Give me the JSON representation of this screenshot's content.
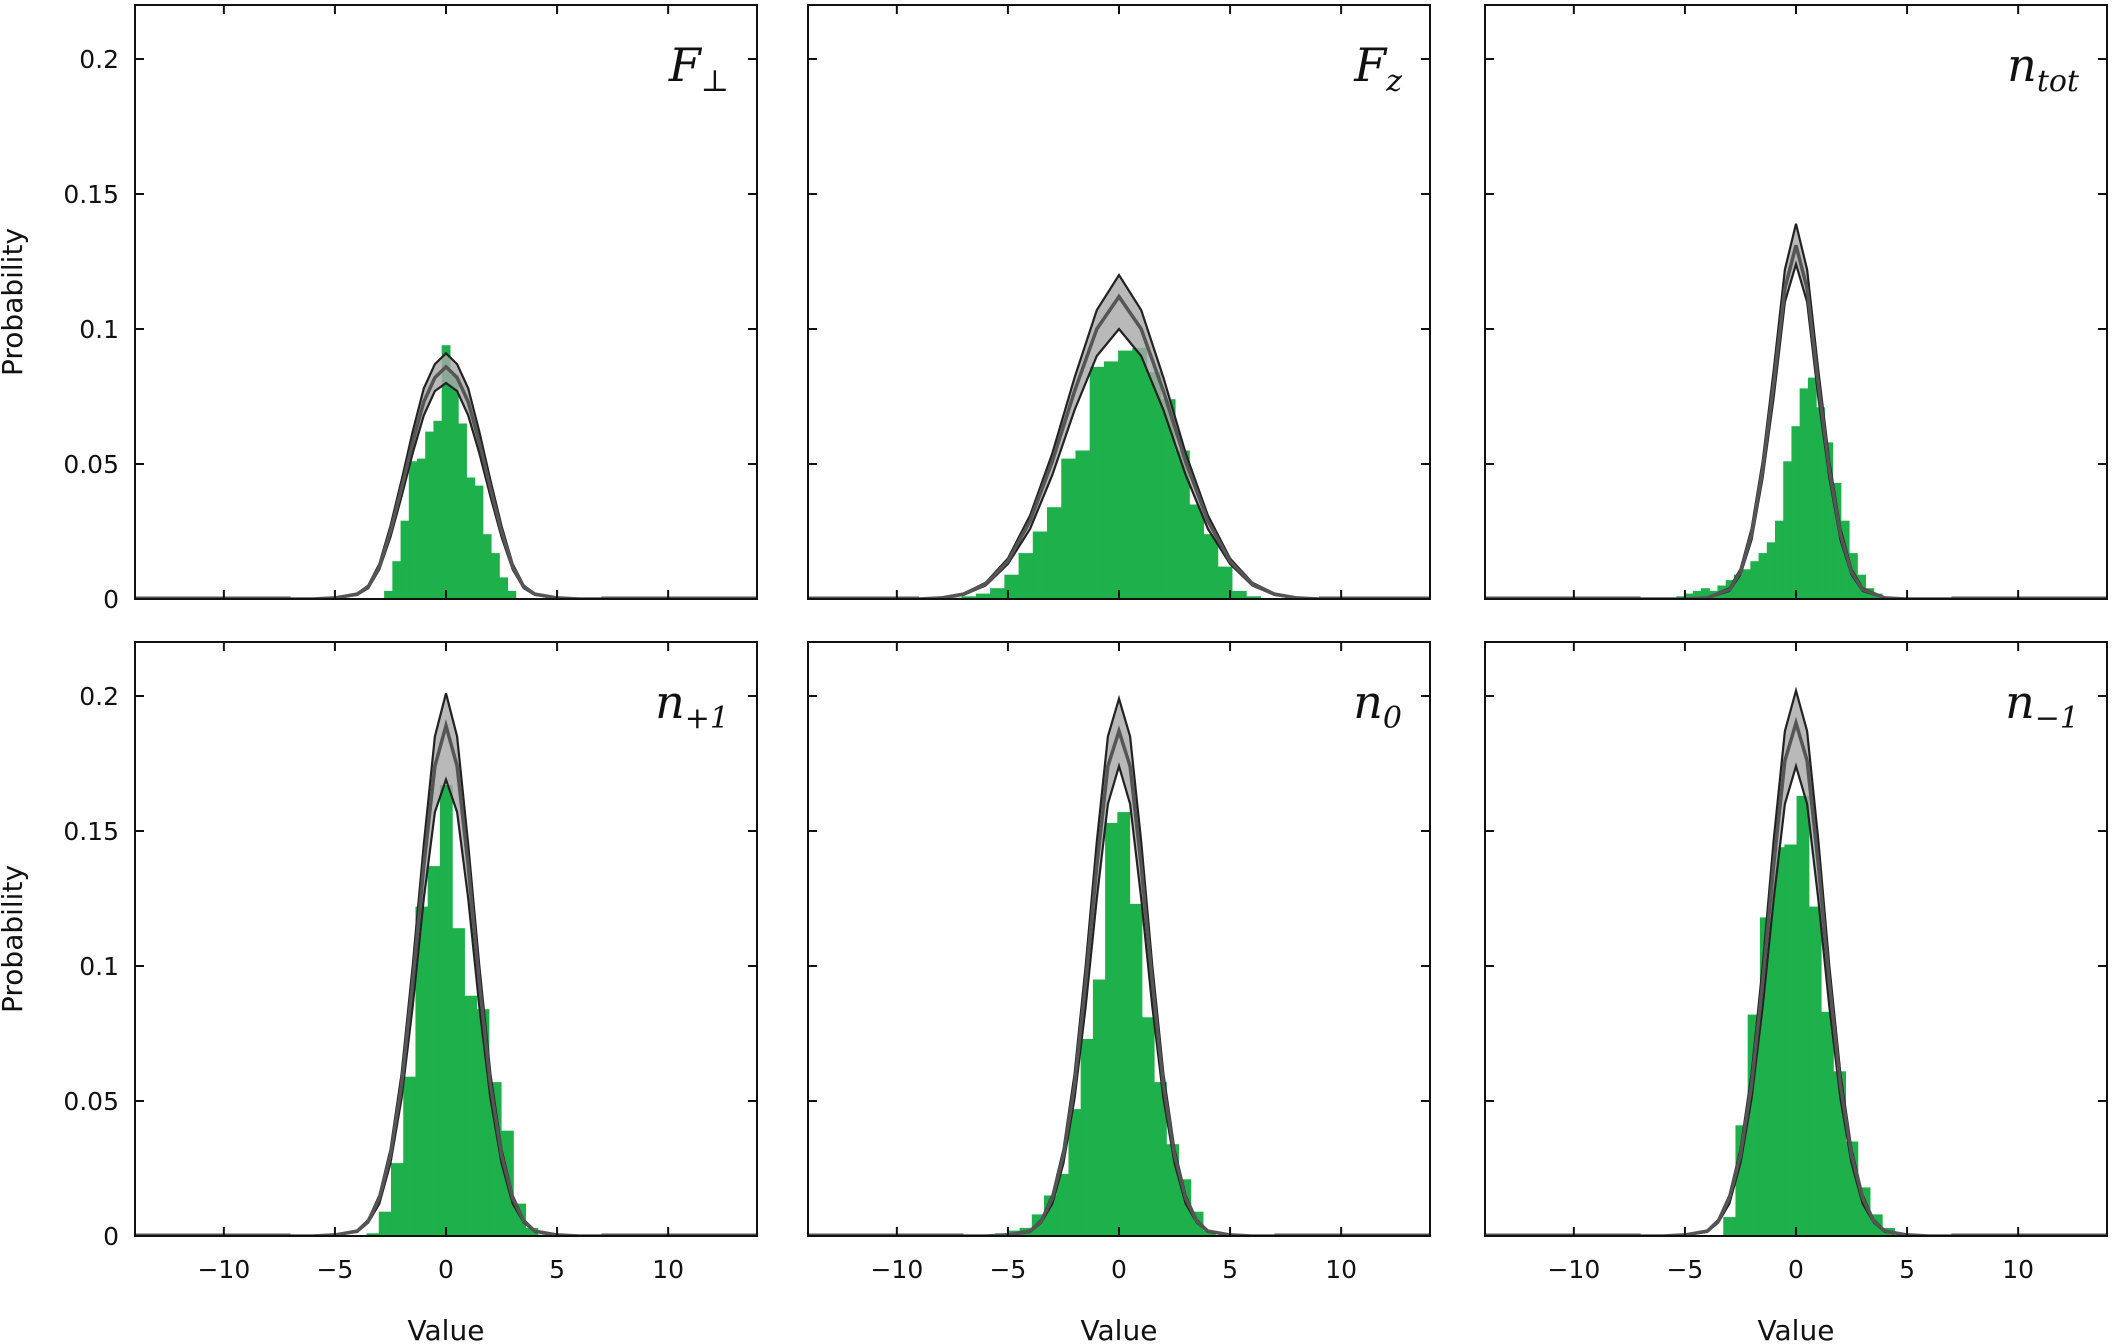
{
  "chart_data": [
    {
      "type": "bar",
      "panel_label": "F",
      "panel_label_sub": "⊥",
      "ylabel": "Probability",
      "xlabel": "",
      "xlim": [
        -14,
        14
      ],
      "ylim": [
        0,
        0.22
      ],
      "show_xticklabels": false,
      "show_yticklabels": true,
      "bin_width": 0.37,
      "hist_x": [
        -2.6,
        -2.23,
        -1.86,
        -1.49,
        -1.12,
        -0.75,
        -0.38,
        -0.01,
        0.36,
        0.73,
        1.1,
        1.47,
        1.84,
        2.21,
        2.58,
        2.95
      ],
      "hist_y": [
        0.003,
        0.014,
        0.029,
        0.051,
        0.052,
        0.062,
        0.066,
        0.094,
        0.083,
        0.065,
        0.045,
        0.042,
        0.024,
        0.017,
        0.008,
        0.003
      ],
      "band": {
        "x": [
          -7,
          -6,
          -5,
          -4,
          -3.5,
          -3,
          -2.5,
          -2,
          -1.5,
          -1,
          -0.5,
          0,
          0.5,
          1,
          1.5,
          2,
          2.5,
          3,
          3.5,
          4,
          5,
          6,
          7
        ],
        "upper": [
          0,
          0,
          0.0005,
          0.002,
          0.005,
          0.013,
          0.027,
          0.044,
          0.062,
          0.078,
          0.087,
          0.091,
          0.087,
          0.078,
          0.062,
          0.044,
          0.027,
          0.013,
          0.005,
          0.002,
          0.0005,
          0,
          0
        ],
        "mean": [
          0,
          0,
          0.0004,
          0.0018,
          0.0045,
          0.012,
          0.025,
          0.041,
          0.058,
          0.073,
          0.082,
          0.086,
          0.082,
          0.073,
          0.058,
          0.041,
          0.025,
          0.012,
          0.0045,
          0.0018,
          0.0004,
          0,
          0
        ],
        "lower": [
          0,
          0,
          0.0003,
          0.0015,
          0.004,
          0.011,
          0.023,
          0.038,
          0.054,
          0.068,
          0.077,
          0.08,
          0.077,
          0.068,
          0.054,
          0.038,
          0.023,
          0.011,
          0.004,
          0.0015,
          0.0003,
          0,
          0
        ]
      }
    },
    {
      "type": "bar",
      "panel_label": "F",
      "panel_label_sub": "z",
      "ylabel": "",
      "xlabel": "",
      "xlim": [
        -14,
        14
      ],
      "ylim": [
        0,
        0.22
      ],
      "show_xticklabels": false,
      "show_yticklabels": false,
      "bin_width": 0.64,
      "hist_x": [
        -7.4,
        -6.76,
        -6.12,
        -5.48,
        -4.84,
        -4.2,
        -3.56,
        -2.92,
        -2.28,
        -1.64,
        -1.0,
        -0.36,
        0.28,
        0.92,
        1.56,
        2.2,
        2.84,
        3.48,
        4.12,
        4.76,
        5.4,
        6.04
      ],
      "hist_y": [
        0.0005,
        0.001,
        0.002,
        0.004,
        0.009,
        0.017,
        0.025,
        0.034,
        0.052,
        0.055,
        0.086,
        0.088,
        0.092,
        0.093,
        0.084,
        0.074,
        0.055,
        0.035,
        0.024,
        0.012,
        0.003,
        0.001
      ],
      "band": {
        "x": [
          -9,
          -8,
          -7,
          -6,
          -5,
          -4,
          -3,
          -2,
          -1,
          0,
          1,
          2,
          3,
          4,
          5,
          6,
          7,
          8,
          9
        ],
        "upper": [
          0,
          0.0005,
          0.002,
          0.006,
          0.015,
          0.031,
          0.054,
          0.082,
          0.107,
          0.12,
          0.107,
          0.082,
          0.054,
          0.031,
          0.015,
          0.006,
          0.002,
          0.0005,
          0
        ],
        "mean": [
          0,
          0.0004,
          0.0018,
          0.0055,
          0.014,
          0.029,
          0.051,
          0.077,
          0.1,
          0.112,
          0.1,
          0.077,
          0.051,
          0.029,
          0.014,
          0.0055,
          0.0018,
          0.0004,
          0
        ],
        "lower": [
          0,
          0.0003,
          0.0015,
          0.005,
          0.013,
          0.026,
          0.046,
          0.07,
          0.09,
          0.1,
          0.09,
          0.07,
          0.046,
          0.026,
          0.013,
          0.005,
          0.0015,
          0.0003,
          0
        ]
      }
    },
    {
      "type": "bar",
      "panel_label": "n",
      "panel_label_sub": "tot",
      "ylabel": "",
      "xlabel": "",
      "xlim": [
        -14,
        14
      ],
      "ylim": [
        0,
        0.22
      ],
      "show_xticklabels": false,
      "show_yticklabels": false,
      "bin_width": 0.37,
      "hist_x": [
        -5.2,
        -4.83,
        -4.46,
        -4.09,
        -3.72,
        -3.35,
        -2.98,
        -2.61,
        -2.24,
        -1.87,
        -1.5,
        -1.13,
        -0.76,
        -0.39,
        -0.02,
        0.35,
        0.72,
        1.09,
        1.46,
        1.83,
        2.2,
        2.57,
        2.94,
        3.31,
        3.68
      ],
      "hist_y": [
        0.001,
        0.002,
        0.003,
        0.004,
        0.003,
        0.005,
        0.007,
        0.009,
        0.011,
        0.014,
        0.017,
        0.021,
        0.029,
        0.051,
        0.064,
        0.078,
        0.082,
        0.071,
        0.058,
        0.043,
        0.029,
        0.017,
        0.009,
        0.004,
        0.002
      ],
      "band": {
        "x": [
          -7,
          -6,
          -5,
          -4,
          -3,
          -2.5,
          -2,
          -1.5,
          -1,
          -0.5,
          0,
          0.5,
          1,
          1.5,
          2,
          2.5,
          3,
          4,
          5,
          6,
          7
        ],
        "upper": [
          0,
          0,
          0,
          0.0005,
          0.004,
          0.011,
          0.026,
          0.051,
          0.085,
          0.122,
          0.139,
          0.122,
          0.085,
          0.051,
          0.026,
          0.011,
          0.004,
          0.0005,
          0,
          0,
          0
        ],
        "mean": [
          0,
          0,
          0,
          0.0004,
          0.0035,
          0.01,
          0.024,
          0.048,
          0.08,
          0.115,
          0.131,
          0.115,
          0.08,
          0.048,
          0.024,
          0.01,
          0.0035,
          0.0004,
          0,
          0,
          0
        ],
        "lower": [
          0,
          0,
          0,
          0.0003,
          0.003,
          0.009,
          0.022,
          0.045,
          0.075,
          0.11,
          0.124,
          0.11,
          0.075,
          0.045,
          0.022,
          0.009,
          0.003,
          0.0003,
          0,
          0,
          0
        ]
      }
    },
    {
      "type": "bar",
      "panel_label": "n",
      "panel_label_sub": "+1",
      "ylabel": "Probability",
      "xlabel": "Value",
      "xlim": [
        -14,
        14
      ],
      "ylim": [
        0,
        0.22
      ],
      "show_xticklabels": true,
      "show_yticklabels": true,
      "xticks": [
        -10,
        -5,
        0,
        5,
        10
      ],
      "bin_width": 0.55,
      "hist_x": [
        -3.3,
        -2.75,
        -2.2,
        -1.65,
        -1.1,
        -0.55,
        0.0,
        0.55,
        1.1,
        1.65,
        2.2,
        2.75,
        3.3,
        3.85,
        4.4
      ],
      "hist_y": [
        0.001,
        0.009,
        0.027,
        0.059,
        0.122,
        0.137,
        0.167,
        0.114,
        0.089,
        0.084,
        0.057,
        0.039,
        0.012,
        0.003,
        0.0005
      ],
      "band": {
        "x": [
          -7,
          -6,
          -5,
          -4,
          -3.5,
          -3,
          -2.5,
          -2,
          -1.5,
          -1,
          -0.5,
          0,
          0.5,
          1,
          1.5,
          2,
          2.5,
          3,
          3.5,
          4,
          5,
          6,
          7
        ],
        "upper": [
          0,
          0,
          0.0005,
          0.002,
          0.006,
          0.015,
          0.032,
          0.06,
          0.1,
          0.145,
          0.185,
          0.201,
          0.185,
          0.145,
          0.1,
          0.06,
          0.032,
          0.015,
          0.006,
          0.002,
          0.0005,
          0,
          0
        ],
        "mean": [
          0,
          0,
          0.0004,
          0.0018,
          0.0055,
          0.014,
          0.03,
          0.056,
          0.094,
          0.137,
          0.174,
          0.189,
          0.174,
          0.137,
          0.094,
          0.056,
          0.03,
          0.014,
          0.0055,
          0.0018,
          0.0004,
          0,
          0
        ],
        "lower": [
          0,
          0,
          0.0003,
          0.0015,
          0.005,
          0.012,
          0.027,
          0.051,
          0.085,
          0.125,
          0.157,
          0.169,
          0.157,
          0.125,
          0.085,
          0.051,
          0.027,
          0.012,
          0.005,
          0.0015,
          0.0003,
          0,
          0
        ]
      }
    },
    {
      "type": "bar",
      "panel_label": "n",
      "panel_label_sub": "0",
      "ylabel": "",
      "xlabel": "Value",
      "xlim": [
        -14,
        14
      ],
      "ylim": [
        0,
        0.22
      ],
      "show_xticklabels": true,
      "show_yticklabels": false,
      "xticks": [
        -10,
        -5,
        0,
        5,
        10
      ],
      "bin_width": 0.55,
      "hist_x": [
        -5.3,
        -4.75,
        -4.2,
        -3.65,
        -3.1,
        -2.55,
        -2.0,
        -1.45,
        -0.9,
        -0.35,
        0.2,
        0.75,
        1.3,
        1.85,
        2.4,
        2.95,
        3.5,
        4.05
      ],
      "hist_y": [
        0.001,
        0.002,
        0.003,
        0.008,
        0.015,
        0.023,
        0.047,
        0.073,
        0.095,
        0.153,
        0.157,
        0.123,
        0.081,
        0.057,
        0.034,
        0.021,
        0.009,
        0.002
      ],
      "band": {
        "x": [
          -7,
          -6,
          -5,
          -4,
          -3.5,
          -3,
          -2.5,
          -2,
          -1.5,
          -1,
          -0.5,
          0,
          0.5,
          1,
          1.5,
          2,
          2.5,
          3,
          3.5,
          4,
          5,
          6,
          7
        ],
        "upper": [
          0,
          0,
          0.0005,
          0.002,
          0.006,
          0.015,
          0.032,
          0.06,
          0.1,
          0.146,
          0.185,
          0.199,
          0.185,
          0.146,
          0.1,
          0.06,
          0.032,
          0.015,
          0.006,
          0.002,
          0.0005,
          0,
          0
        ],
        "mean": [
          0,
          0,
          0.0004,
          0.0018,
          0.0055,
          0.014,
          0.03,
          0.056,
          0.094,
          0.137,
          0.174,
          0.187,
          0.174,
          0.137,
          0.094,
          0.056,
          0.03,
          0.014,
          0.0055,
          0.0018,
          0.0004,
          0,
          0
        ],
        "lower": [
          0,
          0,
          0.0003,
          0.0015,
          0.005,
          0.012,
          0.027,
          0.051,
          0.085,
          0.125,
          0.16,
          0.174,
          0.16,
          0.125,
          0.085,
          0.051,
          0.027,
          0.012,
          0.005,
          0.0015,
          0.0003,
          0,
          0
        ]
      }
    },
    {
      "type": "bar",
      "panel_label": "n",
      "panel_label_sub": "−1",
      "ylabel": "",
      "xlabel": "Value",
      "xlim": [
        -14,
        14
      ],
      "ylim": [
        0,
        0.22
      ],
      "show_xticklabels": true,
      "show_yticklabels": false,
      "xticks": [
        -10,
        -5,
        0,
        5,
        10
      ],
      "bin_width": 0.55,
      "hist_x": [
        -3.0,
        -2.45,
        -1.9,
        -1.35,
        -0.8,
        -0.25,
        0.3,
        0.85,
        1.4,
        1.95,
        2.5,
        3.05,
        3.6,
        4.15
      ],
      "hist_y": [
        0.007,
        0.041,
        0.082,
        0.118,
        0.144,
        0.145,
        0.163,
        0.122,
        0.083,
        0.061,
        0.035,
        0.018,
        0.008,
        0.003
      ],
      "band": {
        "x": [
          -7,
          -6,
          -5,
          -4,
          -3.5,
          -3,
          -2.5,
          -2,
          -1.5,
          -1,
          -0.5,
          0,
          0.5,
          1,
          1.5,
          2,
          2.5,
          3,
          3.5,
          4,
          5,
          6,
          7
        ],
        "upper": [
          0,
          0,
          0.0005,
          0.002,
          0.006,
          0.015,
          0.032,
          0.06,
          0.1,
          0.147,
          0.187,
          0.202,
          0.187,
          0.147,
          0.1,
          0.06,
          0.032,
          0.015,
          0.006,
          0.002,
          0.0005,
          0,
          0
        ],
        "mean": [
          0,
          0,
          0.0004,
          0.0018,
          0.0055,
          0.014,
          0.03,
          0.056,
          0.094,
          0.138,
          0.176,
          0.19,
          0.176,
          0.138,
          0.094,
          0.056,
          0.03,
          0.014,
          0.0055,
          0.0018,
          0.0004,
          0,
          0
        ],
        "lower": [
          0,
          0,
          0.0003,
          0.0015,
          0.005,
          0.012,
          0.027,
          0.051,
          0.085,
          0.125,
          0.16,
          0.174,
          0.16,
          0.125,
          0.085,
          0.051,
          0.027,
          0.012,
          0.005,
          0.0015,
          0.0003,
          0,
          0
        ]
      }
    }
  ],
  "yticks": [
    0,
    0.05,
    0.1,
    0.15,
    0.2
  ],
  "ytick_labels": [
    "0",
    "0.05",
    "0.1",
    "0.15",
    "0.2"
  ],
  "xtick_labels": [
    "−10",
    "−5",
    "0",
    "5",
    "10"
  ],
  "colors": {
    "histogram": "#1db04b",
    "band_fill": "#a8a8a8",
    "band_edge": "#222222",
    "mean_line": "#555555",
    "axes": "#111111"
  }
}
